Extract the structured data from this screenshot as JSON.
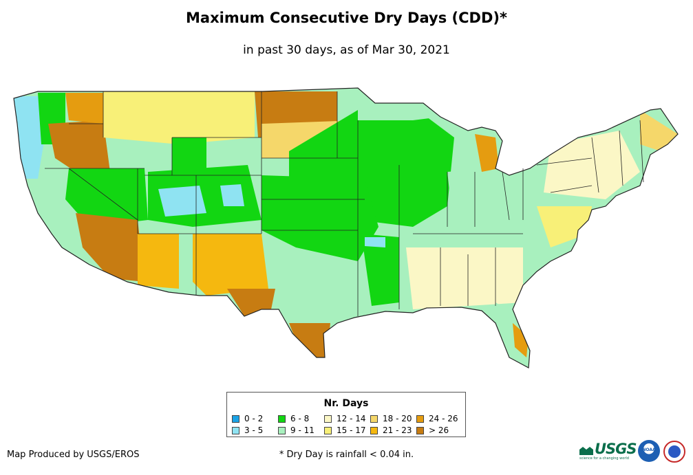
{
  "title": "Maximum Consecutive Dry Days (CDD)*",
  "subtitle": "in past 30 days, as of Mar 30, 2021",
  "legend": {
    "title": "Nr. Days",
    "items": [
      {
        "label": "0 - 2",
        "color": "#1aa3e6"
      },
      {
        "label": "3 - 5",
        "color": "#8fe3f2"
      },
      {
        "label": "6 - 8",
        "color": "#12d612"
      },
      {
        "label": "9 - 11",
        "color": "#a8f0be"
      },
      {
        "label": "12 - 14",
        "color": "#fbf7c6"
      },
      {
        "label": "15 - 17",
        "color": "#f8f078"
      },
      {
        "label": "18 - 20",
        "color": "#f5d76a"
      },
      {
        "label": "21 - 23",
        "color": "#f5b80f"
      },
      {
        "label": "24 - 26",
        "color": "#e59c10"
      },
      {
        "label": "> 26",
        "color": "#c77c12"
      }
    ]
  },
  "credit": "Map Produced by USGS/EROS",
  "footnote": "* Dry Day is rainfall < 0.04 in.",
  "logos": {
    "usgs": "USGS",
    "usgs_tagline": "science for a changing world",
    "noaa": "NOAA"
  }
}
